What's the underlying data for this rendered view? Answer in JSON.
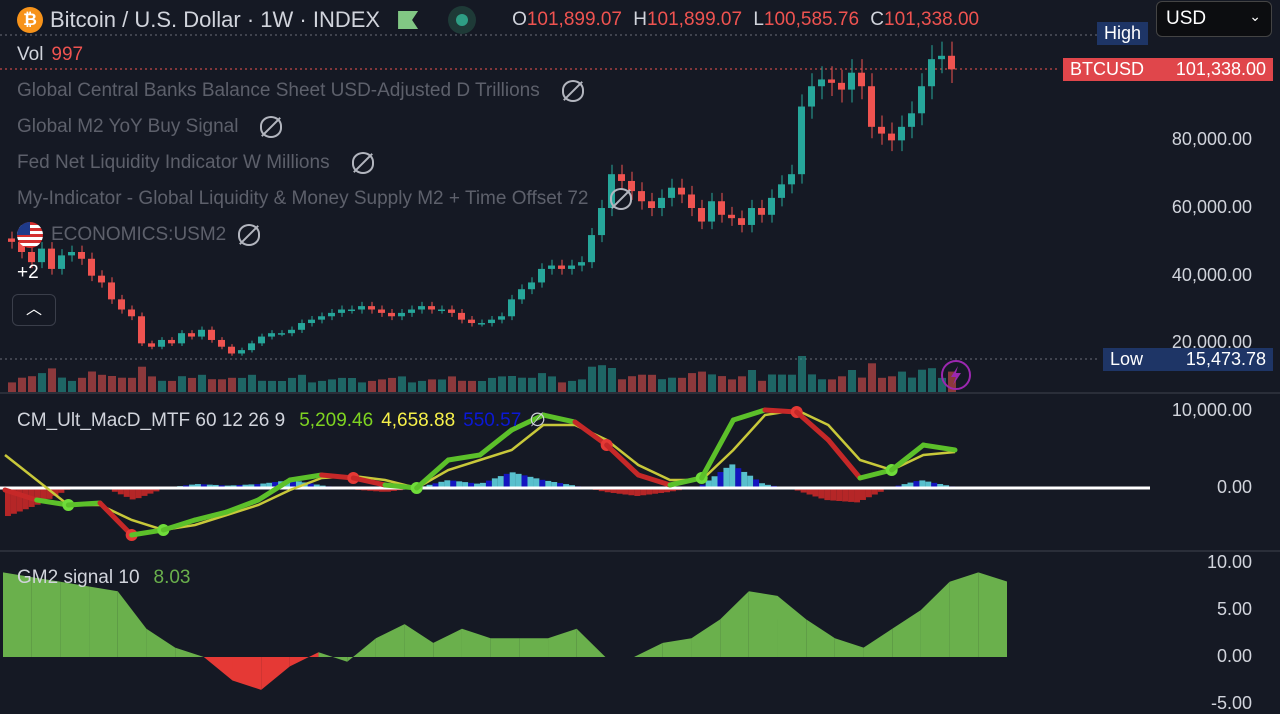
{
  "header": {
    "symbol_title": "Bitcoin / U.S. Dollar · 1W · INDEX",
    "open_label": "O",
    "open": "101,899.07",
    "high_label": "H",
    "high": "101,899.07",
    "low_label": "L",
    "low": "100,585.76",
    "close_label": "C",
    "close": "101,338.00"
  },
  "currency_select": {
    "value": "USD"
  },
  "volume": {
    "label": "Vol",
    "value": "997"
  },
  "indicators": [
    {
      "name": "Global Central Banks Balance Sheet USD-Adjusted D Trillions"
    },
    {
      "name": "Global M2 YoY Buy Signal"
    },
    {
      "name": "Fed Net Liquidity Indicator W Millions"
    },
    {
      "name": "My-Indicator - Global Liquidity & Money Supply M2 + Time Offset 72"
    },
    {
      "name": "ECONOMICS:USM2"
    }
  ],
  "more_indicators": "+2",
  "price_tags": {
    "high_label": "High",
    "symbol": "BTCUSD",
    "last_price": "101,338.00",
    "low_label": "Low",
    "low_value": "15,473.78"
  },
  "macd_legend": {
    "name": "CM_Ult_MacD_MTF 60 12 26 9",
    "macd": "5,209.46",
    "signal": "4,658.88",
    "hist": "550.57",
    "symbol": "∅"
  },
  "gm2_legend": {
    "name": "GM2 signal 10",
    "value": "8.03"
  },
  "colors": {
    "up": "#26a69a",
    "down": "#ef5350",
    "bg": "#151924"
  },
  "chart_data": [
    {
      "type": "candlestick",
      "title": "Bitcoin / U.S. Dollar · 1W",
      "ylabel": "USD",
      "ylim": [
        0,
        110000
      ],
      "y_ticks": [
        "20,000.00",
        "40,000.00",
        "60,000.00",
        "80,000.00"
      ],
      "y_tick_values": [
        20000,
        40000,
        60000,
        80000
      ],
      "closes_k": [
        50,
        47,
        44,
        48,
        42,
        46,
        47,
        45,
        40,
        38,
        33,
        30,
        28,
        20,
        19,
        21,
        20,
        23,
        22,
        24,
        21,
        19,
        17,
        18,
        20,
        22,
        23,
        23,
        24,
        26,
        27,
        28,
        29,
        30,
        30,
        31,
        30,
        29,
        28,
        29,
        30,
        31,
        30,
        30,
        29,
        27,
        26,
        26,
        27,
        28,
        33,
        36,
        38,
        42,
        43,
        42,
        43,
        44,
        52,
        60,
        70,
        68,
        65,
        62,
        60,
        63,
        66,
        64,
        60,
        56,
        62,
        58,
        57,
        55,
        60,
        58,
        63,
        67,
        70,
        90,
        96,
        98,
        97,
        95,
        100,
        96,
        84,
        82,
        80,
        84,
        88,
        96,
        104,
        105,
        101
      ]
    },
    {
      "type": "line",
      "title": "CM_Ult_MacD_MTF 60 12 26 9",
      "ylim": [
        -12000,
        11000
      ],
      "y_ticks": [
        "10,000.00",
        "0.00"
      ],
      "y_tick_values": [
        10000,
        0
      ],
      "macd": [
        -260,
        -1560,
        -2210,
        -1950,
        -6100,
        -5450,
        -4160,
        -3120,
        -1560,
        1040,
        1690,
        1300,
        390,
        0,
        3640,
        4290,
        7530,
        9480,
        8570,
        5580,
        1690,
        390,
        1300,
        8830,
        10130,
        9870,
        6230,
        1300,
        2340,
        5580,
        4940
      ],
      "signal": [
        4290,
        1040,
        -2210,
        -2210,
        -4160,
        -5450,
        -4810,
        -3510,
        -2210,
        -260,
        1300,
        1560,
        1040,
        0,
        2340,
        3640,
        4940,
        8180,
        8180,
        6230,
        2990,
        1040,
        1040,
        4940,
        9480,
        10130,
        8180,
        3640,
        2340,
        4290,
        4680
      ]
    },
    {
      "type": "area",
      "title": "GM2 signal 10",
      "ylim": [
        -5.3,
        10.6
      ],
      "y_ticks": [
        "10.00",
        "5.00",
        "0.00",
        "-5.00"
      ],
      "y_tick_values": [
        10,
        5,
        0,
        -5
      ],
      "values": [
        9,
        8.5,
        8,
        7.5,
        7,
        3,
        1,
        0,
        -2.5,
        -3.5,
        -1,
        0.5,
        -0.5,
        2,
        3.5,
        1.5,
        3,
        2,
        2,
        2,
        3,
        0,
        0,
        1.5,
        2,
        4,
        7,
        6.5,
        4,
        2,
        1,
        3,
        5,
        8,
        9,
        8.03
      ]
    }
  ]
}
